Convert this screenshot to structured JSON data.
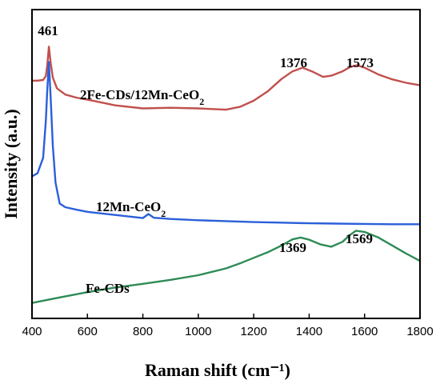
{
  "chart_data": {
    "type": "line",
    "xlabel": "Raman shift (cm⁻¹)",
    "ylabel": "Intensity (a.u.)",
    "xlim": [
      400,
      1800
    ],
    "x_ticks": [
      "400",
      "600",
      "800",
      "1000",
      "1200",
      "1400",
      "1600",
      "1800"
    ],
    "y_ticks_shown": false,
    "grid": false,
    "series": [
      {
        "name": "2Fe-CDs/12Mn-CeO₂",
        "color": "#c0504d",
        "x": [
          400,
          420,
          440,
          450,
          455,
          461,
          467,
          475,
          490,
          520,
          560,
          620,
          700,
          800,
          900,
          1000,
          1050,
          1100,
          1150,
          1200,
          1250,
          1300,
          1340,
          1376,
          1410,
          1450,
          1480,
          1520,
          1550,
          1573,
          1600,
          1650,
          1700,
          1750,
          1800
        ],
        "y": [
          0.77,
          0.77,
          0.772,
          0.785,
          0.82,
          0.88,
          0.83,
          0.78,
          0.745,
          0.725,
          0.715,
          0.705,
          0.69,
          0.68,
          0.682,
          0.68,
          0.678,
          0.676,
          0.685,
          0.705,
          0.735,
          0.775,
          0.8,
          0.812,
          0.8,
          0.782,
          0.786,
          0.8,
          0.815,
          0.82,
          0.812,
          0.79,
          0.774,
          0.763,
          0.755
        ]
      },
      {
        "name": "12Mn-CeO₂",
        "color": "#2b5fd9",
        "x": [
          400,
          420,
          440,
          450,
          455,
          461,
          468,
          475,
          485,
          500,
          520,
          560,
          600,
          700,
          800,
          820,
          840,
          900,
          1000,
          1100,
          1200,
          1300,
          1400,
          1500,
          1600,
          1700,
          1800
        ],
        "y": [
          0.46,
          0.47,
          0.52,
          0.64,
          0.74,
          0.83,
          0.7,
          0.56,
          0.44,
          0.372,
          0.36,
          0.352,
          0.345,
          0.335,
          0.325,
          0.338,
          0.326,
          0.322,
          0.318,
          0.315,
          0.312,
          0.31,
          0.308,
          0.307,
          0.306,
          0.305,
          0.305
        ]
      },
      {
        "name": "Fe-CDs",
        "color": "#2e8b57",
        "x": [
          400,
          500,
          600,
          700,
          800,
          900,
          1000,
          1100,
          1150,
          1200,
          1250,
          1300,
          1340,
          1369,
          1400,
          1440,
          1480,
          1520,
          1550,
          1569,
          1600,
          1650,
          1700,
          1750,
          1800
        ],
        "y": [
          0.05,
          0.068,
          0.085,
          0.1,
          0.112,
          0.125,
          0.14,
          0.162,
          0.178,
          0.196,
          0.214,
          0.236,
          0.256,
          0.262,
          0.255,
          0.24,
          0.232,
          0.248,
          0.272,
          0.284,
          0.28,
          0.262,
          0.236,
          0.21,
          0.186
        ]
      }
    ],
    "annotations": [
      {
        "text": "461"
      },
      {
        "text": "1376"
      },
      {
        "text": "1573"
      },
      {
        "text": "1369"
      },
      {
        "text": "1569"
      }
    ],
    "series_labels": [
      {
        "text": "2Fe-CDs/12Mn-CeO",
        "sub": "2"
      },
      {
        "text": "12Mn-CeO",
        "sub": "2"
      },
      {
        "text": "Fe-CDs",
        "sub": ""
      }
    ]
  }
}
